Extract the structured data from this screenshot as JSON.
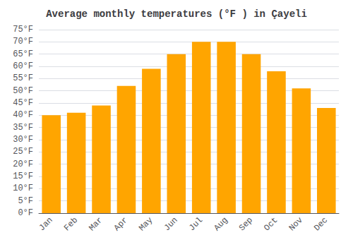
{
  "chart_data": {
    "type": "bar",
    "title": "Average monthly temperatures (°F ) in Çayeli",
    "categories": [
      "Jan",
      "Feb",
      "Mar",
      "Apr",
      "May",
      "Jun",
      "Jul",
      "Aug",
      "Sep",
      "Oct",
      "Nov",
      "Dec"
    ],
    "values": [
      40,
      41,
      44,
      52,
      59,
      65,
      70,
      70,
      65,
      58,
      51,
      43
    ],
    "color": "#FFA500",
    "ylim": [
      0,
      75
    ],
    "yticks": [
      {
        "value": 0,
        "label": "0°F"
      },
      {
        "value": 5,
        "label": "5°F"
      },
      {
        "value": 10,
        "label": "10°F"
      },
      {
        "value": 15,
        "label": "15°F"
      },
      {
        "value": 20,
        "label": "20°F"
      },
      {
        "value": 25,
        "label": "25°F"
      },
      {
        "value": 30,
        "label": "30°F"
      },
      {
        "value": 35,
        "label": "35°F"
      },
      {
        "value": 40,
        "label": "40°F"
      },
      {
        "value": 45,
        "label": "45°F"
      },
      {
        "value": 50,
        "label": "50°F"
      },
      {
        "value": 55,
        "label": "55°F"
      },
      {
        "value": 60,
        "label": "60°F"
      },
      {
        "value": 65,
        "label": "65°F"
      },
      {
        "value": 70,
        "label": "70°F"
      },
      {
        "value": 75,
        "label": "75°F"
      }
    ],
    "grid": true
  }
}
